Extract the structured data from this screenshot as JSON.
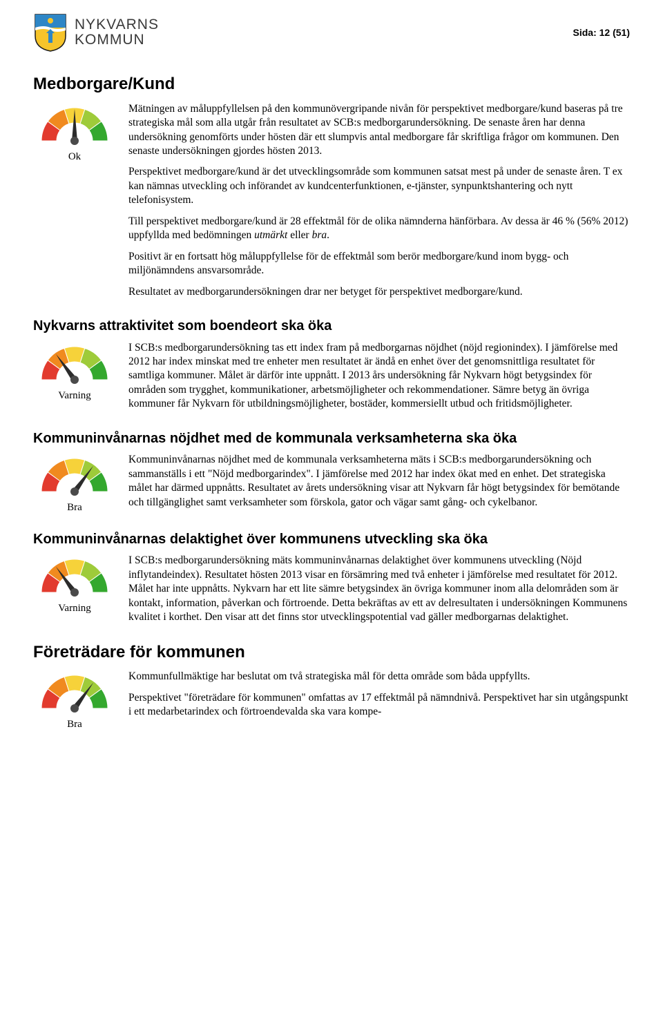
{
  "header": {
    "org_line1": "NYKVARNS",
    "org_line2": "KOMMUN",
    "page_label": "Sida: 12 (51)",
    "crest_colors": {
      "shield_top": "#2e86c6",
      "shield_bottom": "#f6c42a",
      "outline": "#1a1a1a"
    }
  },
  "gauge_palette": {
    "segments": [
      "#e23b2e",
      "#f08a1f",
      "#f6d23a",
      "#9ecb3a",
      "#34a82e"
    ],
    "needle": "#2b2b2b",
    "hub": "#4a4a4a"
  },
  "sections": [
    {
      "id": "medborgare",
      "title": "Medborgare/Kund",
      "gauge_level": 2,
      "gauge_caption": "Ok",
      "paragraphs": [
        "Mätningen av måluppfyllelsen på den kommunövergripande nivån för perspektivet medborgare/kund baseras på tre strategiska mål som alla utgår från resultatet av SCB:s medborgarundersökning. De senaste åren har denna undersökning genomförts under hösten där ett slumpvis antal medborgare får skriftliga frågor om kommunen. Den senaste undersökningen gjordes hösten 2013.",
        "Perspektivet medborgare/kund är det utvecklingsområde som kommunen satsat mest på under de senaste åren. T ex kan nämnas utveckling och införandet av kundcenterfunktionen, e-tjänster, synpunktshantering och nytt telefonisystem.",
        "Till perspektivet medborgare/kund är 28 effektmål för de olika nämnderna hänförbara. Av dessa är 46 %  (56% 2012) uppfyllda med bedömningen <em>utmärkt</em> eller <em>bra</em>.",
        "Positivt är en fortsatt hög måluppfyllelse för de effektmål som berör medborgare/kund inom bygg- och miljönämndens ansvarsområde.",
        "Resultatet av medborgarundersökningen drar ner betyget för perspektivet medborgare/kund."
      ]
    },
    {
      "id": "attraktivitet",
      "title": "Nykvarns attraktivitet som boendeort ska öka",
      "gauge_level": 1,
      "gauge_caption": "Varning",
      "paragraphs": [
        "I SCB:s medborgarundersökning tas ett index fram på medborgarnas nöjdhet (nöjd regionindex). I jämförelse med 2012 har index minskat med tre enheter men resultatet är ändå en enhet över det genomsnittliga resultatet för samtliga kommuner. Målet är därför inte uppnått. I 2013 års undersökning får Nykvarn högt betygsindex för områden som trygghet, kommunikationer, arbetsmöjligheter och rekommendationer. Sämre betyg än övriga kommuner får Nykvarn för utbildningsmöjligheter, bostäder, kommersiellt utbud och fritidsmöjligheter."
      ]
    },
    {
      "id": "nojdhet",
      "title": "Kommuninvånarnas nöjdhet med de kommunala verksamheterna ska öka",
      "gauge_level": 3,
      "gauge_caption": "Bra",
      "paragraphs": [
        "Kommuninvånarnas nöjdhet med de kommunala verksamheterna mäts i SCB:s medborgarundersökning och sammanställs i ett \"Nöjd medborgarindex\". I jämförelse med 2012 har index ökat med en enhet. Det strategiska målet har därmed uppnåtts. Resultatet av årets undersökning visar att Nykvarn får högt betygsindex för bemötande och tillgänglighet samt verksamheter som förskola, gator och vägar samt gång- och cykelbanor."
      ]
    },
    {
      "id": "delaktighet",
      "title": "Kommuninvånarnas delaktighet över kommunens utveckling ska öka",
      "gauge_level": 1,
      "gauge_caption": "Varning",
      "paragraphs": [
        "I SCB:s medborgarundersökning mäts kommuninvånarnas delaktighet över kommunens utveckling (Nöjd inflytandeindex). Resultatet hösten 2013 visar en försämring med två enheter i jämförelse med resultatet för 2012. Målet har inte uppnåtts. Nykvarn har ett lite sämre betygsindex än övriga kommuner inom alla delområden som är kontakt, information, påverkan och förtroende. Detta bekräftas av ett av delresultaten i undersökningen Kommunens kvalitet i korthet. Den visar att det finns stor utvecklingspotential vad gäller medborgarnas delaktighet."
      ]
    },
    {
      "id": "foretradare",
      "title": "Företrädare för kommunen",
      "gauge_level": 3,
      "gauge_caption": "Bra",
      "paragraphs": [
        "Kommunfullmäktige har beslutat om två strategiska mål för detta område som båda uppfyllts.",
        "Perspektivet \"företrädare för kommunen\" omfattas av 17 effektmål på nämndnivå. Perspektivet har sin utgångspunkt i ett medarbetarindex och förtroendevalda ska vara kompe-"
      ]
    }
  ]
}
